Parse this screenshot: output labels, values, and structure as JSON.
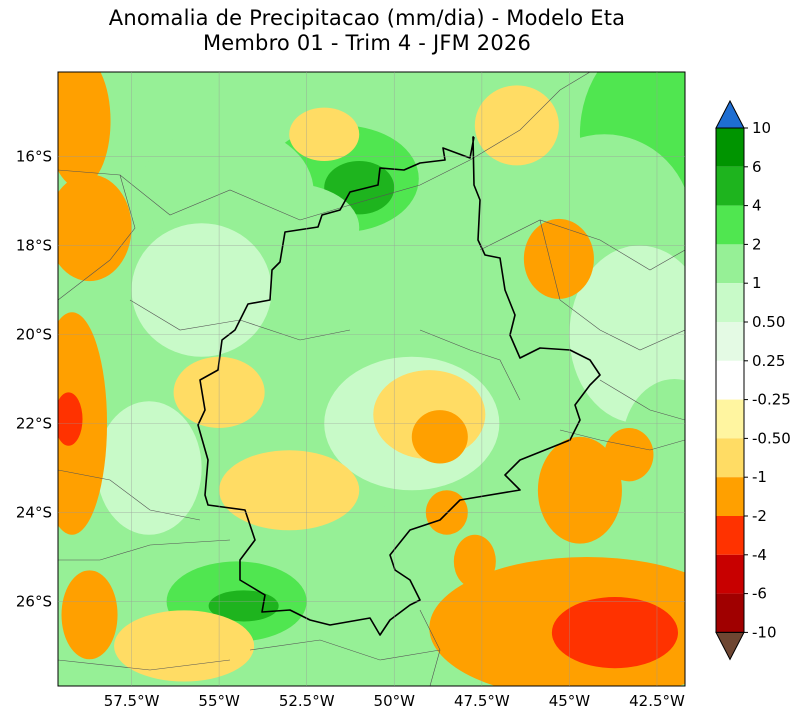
{
  "chart_data": {
    "type": "heatmap",
    "title": "Anomalia de Precipitacao (mm/dia) - Modelo Eta",
    "subtitle": "Membro 01 - Trim 4 - JFM 2026",
    "xlabel": "",
    "ylabel": "",
    "x_ticks": [
      "57.5°W",
      "55°W",
      "52.5°W",
      "50°W",
      "47.5°W",
      "45°W",
      "42.5°W"
    ],
    "y_ticks": [
      "16°S",
      "18°S",
      "20°S",
      "22°S",
      "24°S",
      "26°S"
    ],
    "lon_range": [
      -59.6,
      -41.7
    ],
    "lat_range": [
      -27.9,
      -14.1
    ],
    "grid": true,
    "colorbar": {
      "labels": [
        "10",
        "6",
        "4",
        "2",
        "1",
        "0.50",
        "0.25",
        "-0.25",
        "-0.50",
        "-1",
        "-2",
        "-4",
        "-6",
        "-10"
      ],
      "colors": [
        "#009400",
        "#1eb41e",
        "#50e650",
        "#96f096",
        "#c8fac8",
        "#e4fae4",
        "#ffffff",
        "#fff5a0",
        "#ffdc64",
        "#ffa000",
        "#ff3200",
        "#c80000",
        "#a00000"
      ],
      "over_color": "#1e6ed2",
      "under_color": "#6e4632"
    },
    "field_blobs": [
      {
        "lon": -50.5,
        "lat": -16.2,
        "rlon": 4.5,
        "rlat": 2.0,
        "value": 1.5
      },
      {
        "lon": -51.5,
        "lat": -16.5,
        "rlon": 2.2,
        "rlat": 1.2,
        "value": 2.5
      },
      {
        "lon": -51.0,
        "lat": -16.7,
        "rlon": 1.0,
        "rlat": 0.6,
        "value": 4.5
      },
      {
        "lon": -54.8,
        "lat": -16.8,
        "rlon": 2.5,
        "rlat": 1.5,
        "value": 1.2
      },
      {
        "lon": -53.0,
        "lat": -17.6,
        "rlon": 2.0,
        "rlat": 1.0,
        "value": 2.0
      },
      {
        "lon": -42.5,
        "lat": -15.5,
        "rlon": 2.2,
        "rlat": 2.2,
        "value": 2.2
      },
      {
        "lon": -44.0,
        "lat": -17.5,
        "rlon": 2.5,
        "rlat": 2.0,
        "value": 1.2
      },
      {
        "lon": -43.0,
        "lat": -20.0,
        "rlon": 2.0,
        "rlat": 2.0,
        "value": 1.0
      },
      {
        "lon": -52.0,
        "lat": -25.6,
        "rlon": 4.0,
        "rlat": 1.6,
        "value": 1.5
      },
      {
        "lon": -54.5,
        "lat": -26.0,
        "rlon": 2.0,
        "rlat": 0.9,
        "value": 2.5
      },
      {
        "lon": -54.3,
        "lat": -26.1,
        "rlon": 1.0,
        "rlat": 0.35,
        "value": 5.0
      },
      {
        "lon": -51.0,
        "lat": -24.8,
        "rlon": 2.0,
        "rlat": 1.0,
        "value": 2.0
      },
      {
        "lon": -49.5,
        "lat": -22.0,
        "rlon": 2.5,
        "rlat": 1.5,
        "value": 0.6
      },
      {
        "lon": -55.5,
        "lat": -19.0,
        "rlon": 2.0,
        "rlat": 1.5,
        "value": 0.8
      },
      {
        "lon": -57.0,
        "lat": -23.0,
        "rlon": 1.5,
        "rlat": 1.5,
        "value": 0.6
      },
      {
        "lon": -42.0,
        "lat": -22.5,
        "rlon": 1.5,
        "rlat": 1.5,
        "value": 1.5
      },
      {
        "lon": -59.2,
        "lat": -22.0,
        "rlon": 1.0,
        "rlat": 2.5,
        "value": -1.5
      },
      {
        "lon": -59.3,
        "lat": -21.9,
        "rlon": 0.4,
        "rlat": 0.6,
        "value": -2.5
      },
      {
        "lon": -59.0,
        "lat": -15.2,
        "rlon": 0.9,
        "rlat": 1.5,
        "value": -1.3
      },
      {
        "lon": -58.7,
        "lat": -17.6,
        "rlon": 1.2,
        "rlat": 1.2,
        "value": -1.2
      },
      {
        "lon": -58.7,
        "lat": -26.3,
        "rlon": 0.8,
        "rlat": 1.0,
        "value": -1.2
      },
      {
        "lon": -49.0,
        "lat": -21.8,
        "rlon": 1.6,
        "rlat": 1.0,
        "value": -0.8
      },
      {
        "lon": -48.7,
        "lat": -22.3,
        "rlon": 0.8,
        "rlat": 0.6,
        "value": -1.3
      },
      {
        "lon": -55.0,
        "lat": -21.3,
        "rlon": 1.3,
        "rlat": 0.8,
        "value": -0.9
      },
      {
        "lon": -46.5,
        "lat": -15.3,
        "rlon": 1.2,
        "rlat": 0.9,
        "value": -0.8
      },
      {
        "lon": -45.3,
        "lat": -18.3,
        "rlon": 1.0,
        "rlat": 0.9,
        "value": -1.2
      },
      {
        "lon": -52.0,
        "lat": -15.5,
        "rlon": 1.0,
        "rlat": 0.6,
        "value": -0.6
      },
      {
        "lon": -44.7,
        "lat": -23.5,
        "rlon": 1.2,
        "rlat": 1.2,
        "value": -1.5
      },
      {
        "lon": -44.5,
        "lat": -26.6,
        "rlon": 4.5,
        "rlat": 1.6,
        "value": -1.2
      },
      {
        "lon": -43.7,
        "lat": -26.7,
        "rlon": 1.8,
        "rlat": 0.8,
        "value": -2.3
      },
      {
        "lon": -48.5,
        "lat": -24.0,
        "rlon": 0.6,
        "rlat": 0.5,
        "value": -1.1
      },
      {
        "lon": -47.7,
        "lat": -25.1,
        "rlon": 0.6,
        "rlat": 0.6,
        "value": -1.1
      },
      {
        "lon": -43.3,
        "lat": -22.7,
        "rlon": 0.7,
        "rlat": 0.6,
        "value": -1.0
      },
      {
        "lon": -53.0,
        "lat": -23.5,
        "rlon": 2.0,
        "rlat": 0.9,
        "value": -0.7
      },
      {
        "lon": -56.0,
        "lat": -27.0,
        "rlon": 2.0,
        "rlat": 0.8,
        "value": -0.7
      }
    ]
  }
}
